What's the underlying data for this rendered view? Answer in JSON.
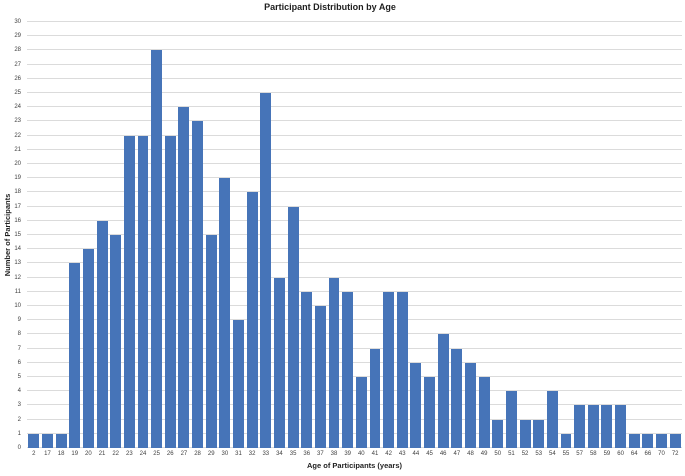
{
  "chart_data": {
    "type": "bar",
    "title": "Participant Distribution by Age",
    "xlabel": "Age of Participants (years)",
    "ylabel": "Number of Participants",
    "categories": [
      "2",
      "17",
      "18",
      "19",
      "20",
      "21",
      "22",
      "23",
      "24",
      "25",
      "26",
      "27",
      "28",
      "29",
      "30",
      "31",
      "32",
      "33",
      "34",
      "35",
      "36",
      "37",
      "38",
      "39",
      "40",
      "41",
      "42",
      "43",
      "44",
      "45",
      "46",
      "47",
      "48",
      "49",
      "50",
      "51",
      "52",
      "53",
      "54",
      "55",
      "57",
      "58",
      "59",
      "60",
      "64",
      "66",
      "70",
      "72"
    ],
    "values": [
      1,
      1,
      1,
      13,
      14,
      16,
      15,
      22,
      22,
      28,
      22,
      24,
      23,
      15,
      19,
      9,
      18,
      25,
      12,
      17,
      11,
      10,
      12,
      11,
      5,
      7,
      11,
      11,
      6,
      5,
      8,
      7,
      6,
      5,
      2,
      4,
      2,
      2,
      4,
      1,
      3,
      3,
      3,
      3,
      1,
      1,
      1,
      1
    ],
    "ylim": [
      0,
      30
    ],
    "ytick_step": 1,
    "grid": true,
    "legend": false,
    "layout": {
      "legend_position": "none",
      "bar_width_fraction": 0.8
    },
    "colors": {
      "bar": "#4674B8",
      "gridline": "#DBDBDB",
      "tick_label": "#3F3F3F",
      "title": "#1F1F1F"
    }
  }
}
